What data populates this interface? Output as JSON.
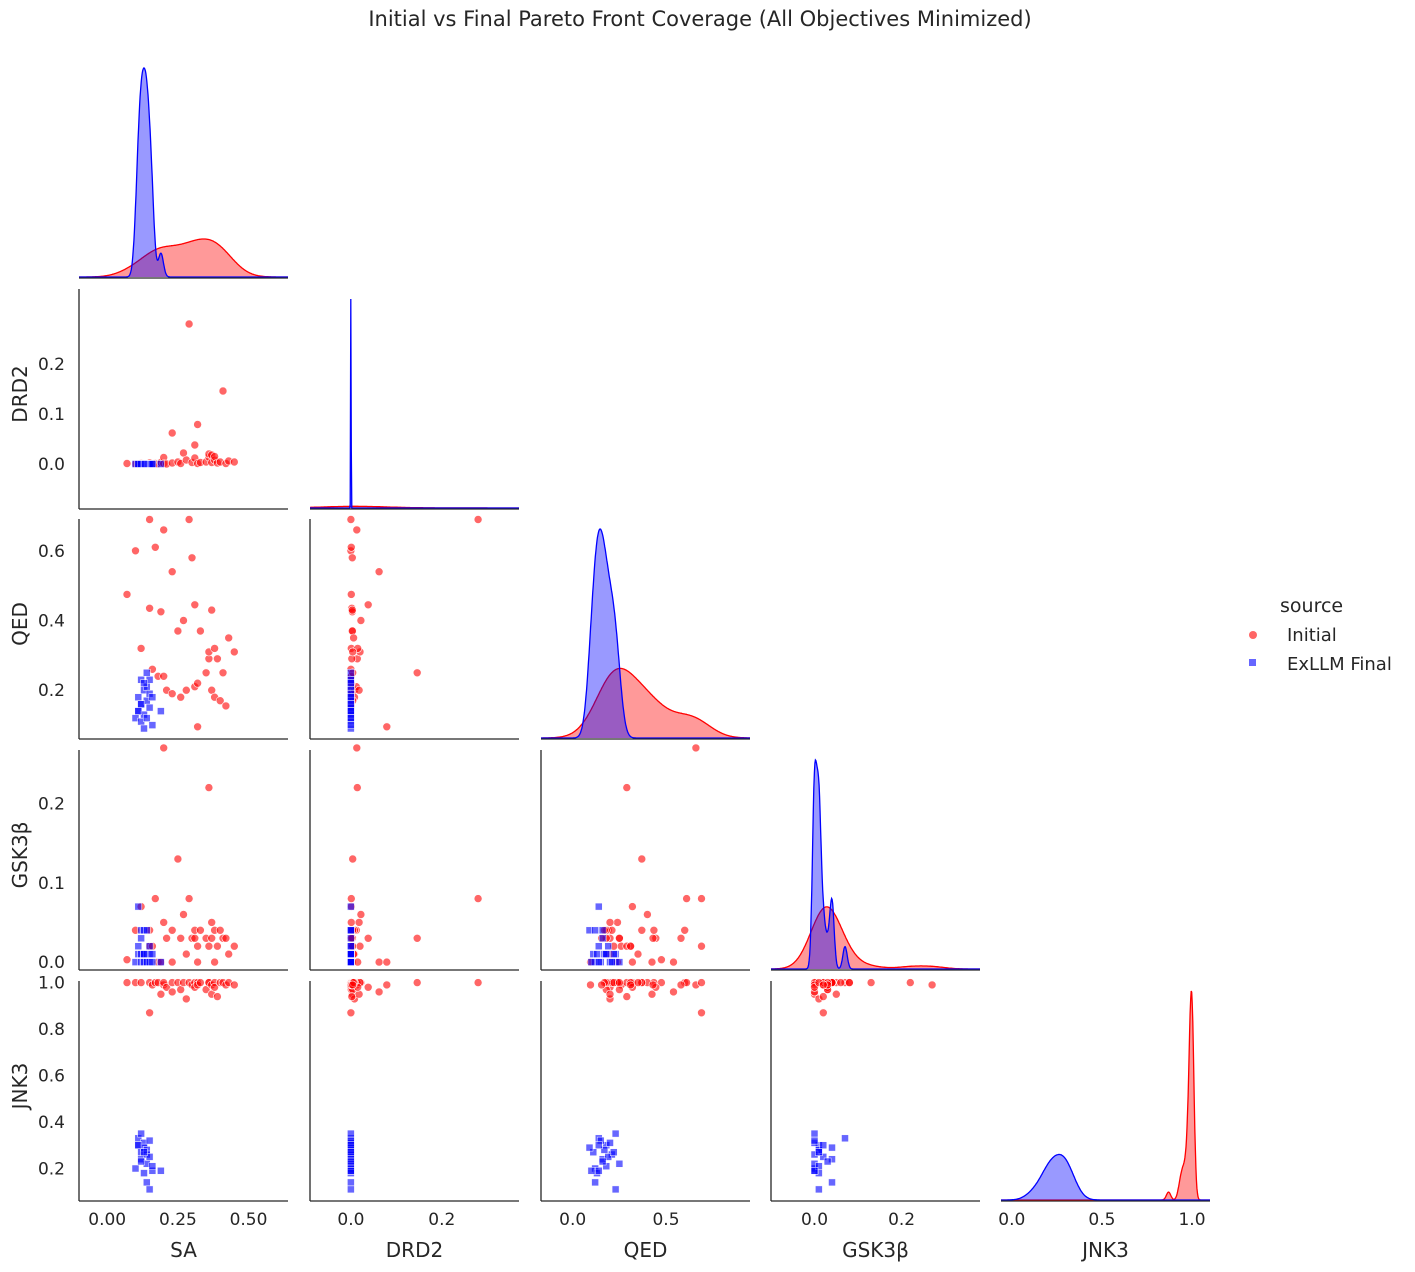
{
  "chart_data": {
    "type": "pairplot",
    "title": "Initial vs Final Pareto Front Coverage (All Objectives Minimized)",
    "variables": [
      "SA",
      "DRD2",
      "QED",
      "GSK3β",
      "JNK3"
    ],
    "hue": "source",
    "legend_position": "right",
    "legend": {
      "title": "source",
      "entries": [
        {
          "label": "Initial",
          "marker": "circle",
          "color": "#ff0000"
        },
        {
          "label": "ExLLM Final",
          "marker": "square",
          "color": "#0000ff"
        }
      ]
    },
    "axes": {
      "SA": {
        "range": [
          -0.1,
          0.64
        ],
        "ticks": [
          0.0,
          0.25,
          0.5
        ],
        "tick_labels": [
          "0.00",
          "0.25",
          "0.50"
        ]
      },
      "DRD2": {
        "range": [
          -0.09,
          0.37
        ],
        "ticks": [
          0.0,
          0.1,
          0.2
        ],
        "tick_labels": [
          "0.0",
          "0.1",
          "0.2"
        ],
        "x_tick_labels": [
          "0.0",
          "0.2"
        ],
        "x_ticks": [
          0.0,
          0.2
        ]
      },
      "QED": {
        "range": [
          0.06,
          0.72
        ],
        "ticks": [
          0.2,
          0.4,
          0.6
        ],
        "tick_labels": [
          "0.2",
          "0.4",
          "0.6"
        ]
      },
      "QED_x": {
        "range": [
          -0.17,
          0.95
        ],
        "ticks": [
          0.0,
          0.5
        ],
        "tick_labels": [
          "0.0",
          "0.5"
        ]
      },
      "GSK3β": {
        "range": [
          -0.01,
          0.28
        ],
        "ticks": [
          0.0,
          0.1,
          0.2
        ],
        "tick_labels": [
          "0.0",
          "0.1",
          "0.2"
        ]
      },
      "GSK3β_x": {
        "range": [
          -0.1,
          0.38
        ],
        "ticks": [
          0.0,
          0.2
        ],
        "tick_labels": [
          "0.0",
          "0.2"
        ]
      },
      "JNK3": {
        "range": [
          0.06,
          1.05
        ],
        "ticks": [
          0.2,
          0.4,
          0.6,
          0.8,
          1.0
        ],
        "tick_labels": [
          "0.2",
          "0.4",
          "0.6",
          "0.8",
          "1.0"
        ]
      },
      "JNK3_x": {
        "range": [
          -0.06,
          1.1
        ],
        "ticks": [
          0.0,
          0.5,
          1.0
        ],
        "tick_labels": [
          "0.0",
          "0.5",
          "1.0"
        ]
      }
    },
    "series": [
      {
        "name": "Initial",
        "color": "#ff0000",
        "points": [
          {
            "SA": 0.07,
            "DRD2": 0.001,
            "QED": 0.475,
            "GSK3β": 0.003,
            "JNK3": 1.0
          },
          {
            "SA": 0.1,
            "DRD2": 0.0,
            "QED": 0.6,
            "GSK3β": 0.04,
            "JNK3": 1.0
          },
          {
            "SA": 0.12,
            "DRD2": 0.001,
            "QED": 0.32,
            "GSK3β": 0.07,
            "JNK3": 1.0
          },
          {
            "SA": 0.15,
            "DRD2": 0.0,
            "QED": 0.69,
            "GSK3β": 0.02,
            "JNK3": 0.87
          },
          {
            "SA": 0.15,
            "DRD2": 0.002,
            "QED": 0.435,
            "GSK3β": 0.04,
            "JNK3": 1.0
          },
          {
            "SA": 0.16,
            "DRD2": 0.0,
            "QED": 0.26,
            "GSK3β": 0.02,
            "JNK3": 0.99
          },
          {
            "SA": 0.17,
            "DRD2": 0.001,
            "QED": 0.61,
            "GSK3β": 0.08,
            "JNK3": 1.0
          },
          {
            "SA": 0.18,
            "DRD2": 0.0,
            "QED": 0.24,
            "GSK3β": 0.0,
            "JNK3": 1.0
          },
          {
            "SA": 0.19,
            "DRD2": 0.003,
            "QED": 0.425,
            "GSK3β": 0.0,
            "JNK3": 0.95
          },
          {
            "SA": 0.2,
            "DRD2": 0.013,
            "QED": 0.66,
            "GSK3β": 0.27,
            "JNK3": 0.99
          },
          {
            "SA": 0.2,
            "DRD2": 0.001,
            "QED": 0.24,
            "GSK3β": 0.05,
            "JNK3": 1.0
          },
          {
            "SA": 0.21,
            "DRD2": 0.0,
            "QED": 0.2,
            "GSK3β": 0.03,
            "JNK3": 0.98
          },
          {
            "SA": 0.23,
            "DRD2": 0.062,
            "QED": 0.54,
            "GSK3β": 0.0,
            "JNK3": 0.96
          },
          {
            "SA": 0.23,
            "DRD2": 0.002,
            "QED": 0.19,
            "GSK3β": 0.04,
            "JNK3": 1.0
          },
          {
            "SA": 0.25,
            "DRD2": 0.004,
            "QED": 0.37,
            "GSK3β": 0.13,
            "JNK3": 1.0
          },
          {
            "SA": 0.26,
            "DRD2": 0.001,
            "QED": 0.18,
            "GSK3β": 0.03,
            "JNK3": 0.97
          },
          {
            "SA": 0.27,
            "DRD2": 0.022,
            "QED": 0.4,
            "GSK3β": 0.06,
            "JNK3": 1.0
          },
          {
            "SA": 0.28,
            "DRD2": 0.008,
            "QED": 0.2,
            "GSK3β": 0.01,
            "JNK3": 0.93
          },
          {
            "SA": 0.29,
            "DRD2": 0.28,
            "QED": 0.69,
            "GSK3β": 0.08,
            "JNK3": 1.0
          },
          {
            "SA": 0.3,
            "DRD2": 0.003,
            "QED": 0.58,
            "GSK3β": 0.03,
            "JNK3": 0.99
          },
          {
            "SA": 0.31,
            "DRD2": 0.012,
            "QED": 0.21,
            "GSK3β": 0.04,
            "JNK3": 1.0
          },
          {
            "SA": 0.31,
            "DRD2": 0.038,
            "QED": 0.445,
            "GSK3β": 0.03,
            "JNK3": 0.98
          },
          {
            "SA": 0.32,
            "DRD2": 0.001,
            "QED": 0.22,
            "GSK3β": 0.02,
            "JNK3": 1.0
          },
          {
            "SA": 0.32,
            "DRD2": 0.079,
            "QED": 0.095,
            "GSK3β": 0.0,
            "JNK3": 0.99
          },
          {
            "SA": 0.33,
            "DRD2": 0.003,
            "QED": 0.37,
            "GSK3β": 0.04,
            "JNK3": 1.0
          },
          {
            "SA": 0.35,
            "DRD2": 0.004,
            "QED": 0.25,
            "GSK3β": 0.03,
            "JNK3": 0.97
          },
          {
            "SA": 0.36,
            "DRD2": 0.014,
            "QED": 0.29,
            "GSK3β": 0.22,
            "JNK3": 1.0
          },
          {
            "SA": 0.36,
            "DRD2": 0.02,
            "QED": 0.31,
            "GSK3β": 0.02,
            "JNK3": 1.0
          },
          {
            "SA": 0.37,
            "DRD2": 0.018,
            "QED": 0.2,
            "GSK3β": 0.05,
            "JNK3": 0.95
          },
          {
            "SA": 0.37,
            "DRD2": 0.003,
            "QED": 0.43,
            "GSK3β": 0.03,
            "JNK3": 0.99
          },
          {
            "SA": 0.38,
            "DRD2": 0.008,
            "QED": 0.18,
            "GSK3β": 0.04,
            "JNK3": 1.0
          },
          {
            "SA": 0.38,
            "DRD2": 0.015,
            "QED": 0.32,
            "GSK3β": 0.0,
            "JNK3": 0.98
          },
          {
            "SA": 0.39,
            "DRD2": 0.002,
            "QED": 0.29,
            "GSK3β": 0.02,
            "JNK3": 0.94
          },
          {
            "SA": 0.4,
            "DRD2": 0.004,
            "QED": 0.17,
            "GSK3β": 0.04,
            "JNK3": 1.0
          },
          {
            "SA": 0.41,
            "DRD2": 0.146,
            "QED": 0.25,
            "GSK3β": 0.03,
            "JNK3": 1.0
          },
          {
            "SA": 0.42,
            "DRD2": 0.001,
            "QED": 0.155,
            "GSK3β": 0.03,
            "JNK3": 0.99
          },
          {
            "SA": 0.43,
            "DRD2": 0.006,
            "QED": 0.35,
            "GSK3β": 0.01,
            "JNK3": 1.0
          },
          {
            "SA": 0.45,
            "DRD2": 0.004,
            "QED": 0.31,
            "GSK3β": 0.02,
            "JNK3": 0.99
          }
        ]
      },
      {
        "name": "ExLLM Final",
        "color": "#0000ff",
        "points": [
          {
            "SA": 0.1,
            "DRD2": 0.0,
            "QED": 0.12,
            "GSK3β": 0.0,
            "JNK3": 0.2
          },
          {
            "SA": 0.11,
            "DRD2": 0.0,
            "QED": 0.14,
            "GSK3β": 0.07,
            "JNK3": 0.33
          },
          {
            "SA": 0.11,
            "DRD2": 0.0,
            "QED": 0.18,
            "GSK3β": 0.01,
            "JNK3": 0.3
          },
          {
            "SA": 0.12,
            "DRD2": 0.0,
            "QED": 0.23,
            "GSK3β": 0.0,
            "JNK3": 0.35
          },
          {
            "SA": 0.12,
            "DRD2": 0.0,
            "QED": 0.11,
            "GSK3β": 0.01,
            "JNK3": 0.27
          },
          {
            "SA": 0.12,
            "DRD2": 0.0,
            "QED": 0.16,
            "GSK3β": 0.04,
            "JNK3": 0.24
          },
          {
            "SA": 0.13,
            "DRD2": 0.0,
            "QED": 0.2,
            "GSK3β": 0.0,
            "JNK3": 0.31
          },
          {
            "SA": 0.13,
            "DRD2": 0.0,
            "QED": 0.13,
            "GSK3β": 0.01,
            "JNK3": 0.18
          },
          {
            "SA": 0.13,
            "DRD2": 0.0,
            "QED": 0.09,
            "GSK3β": 0.04,
            "JNK3": 0.29
          },
          {
            "SA": 0.14,
            "DRD2": 0.0,
            "QED": 0.25,
            "GSK3β": 0.0,
            "JNK3": 0.22
          },
          {
            "SA": 0.14,
            "DRD2": 0.0,
            "QED": 0.17,
            "GSK3β": 0.01,
            "JNK3": 0.28
          },
          {
            "SA": 0.14,
            "DRD2": 0.0,
            "QED": 0.12,
            "GSK3β": 0.04,
            "JNK3": 0.14
          },
          {
            "SA": 0.14,
            "DRD2": 0.0,
            "QED": 0.21,
            "GSK3β": 0.0,
            "JNK3": 0.26
          },
          {
            "SA": 0.15,
            "DRD2": 0.0,
            "QED": 0.23,
            "GSK3β": 0.01,
            "JNK3": 0.11
          },
          {
            "SA": 0.15,
            "DRD2": 0.0,
            "QED": 0.15,
            "GSK3β": 0.0,
            "JNK3": 0.32
          },
          {
            "SA": 0.15,
            "DRD2": 0.0,
            "QED": 0.19,
            "GSK3β": 0.02,
            "JNK3": 0.25
          },
          {
            "SA": 0.16,
            "DRD2": 0.0,
            "QED": 0.1,
            "GSK3β": 0.0,
            "JNK3": 0.19
          },
          {
            "SA": 0.16,
            "DRD2": 0.0,
            "QED": 0.18,
            "GSK3β": 0.01,
            "JNK3": 0.21
          },
          {
            "SA": 0.19,
            "DRD2": 0.0,
            "QED": 0.14,
            "GSK3β": 0.0,
            "JNK3": 0.19
          },
          {
            "SA": 0.12,
            "DRD2": 0.0,
            "QED": 0.16,
            "GSK3β": 0.03,
            "JNK3": 0.23
          },
          {
            "SA": 0.13,
            "DRD2": 0.0,
            "QED": 0.22,
            "GSK3β": 0.01,
            "JNK3": 0.27
          },
          {
            "SA": 0.11,
            "DRD2": 0.0,
            "QED": 0.14,
            "GSK3β": 0.02,
            "JNK3": 0.3
          }
        ]
      }
    ],
    "kde_peaks": {
      "SA": {
        "Initial": 0.3,
        "ExLLM Final": 0.13
      },
      "DRD2": {
        "Initial": 0.0,
        "ExLLM Final": 0.0
      },
      "QED": {
        "Initial": 0.25,
        "ExLLM Final": 0.15
      },
      "GSK3β": {
        "Initial": 0.035,
        "ExLLM Final": 0.005
      },
      "JNK3": {
        "Initial": 1.0,
        "ExLLM Final": 0.28
      }
    }
  }
}
